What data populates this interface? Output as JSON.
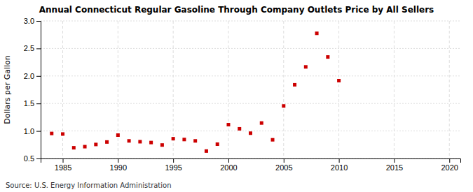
{
  "chart_data": {
    "type": "scatter",
    "title": "Annual Connecticut Regular Gasoline Through Company Outlets Price by All Sellers",
    "ylabel": "Dollars per Gallon",
    "annotations": [
      "Source: U.S. Energy Information Administration"
    ],
    "color": "#cc0000",
    "marker": "square",
    "grid": true,
    "xlim": [
      1983,
      2021
    ],
    "ylim": [
      0.5,
      3.0
    ],
    "xticks": [
      1985,
      1990,
      1995,
      2000,
      2005,
      2010,
      2015,
      2020
    ],
    "yticks": [
      0.5,
      {
        "value": 1.0,
        "label": "1.0"
      },
      1.5,
      {
        "value": 2.0,
        "label": "2.0"
      },
      2.5,
      {
        "value": 3.0,
        "label": "3.0"
      }
    ],
    "x": [
      1984,
      1985,
      1986,
      1987,
      1988,
      1989,
      1990,
      1991,
      1992,
      1993,
      1994,
      1995,
      1996,
      1997,
      1998,
      1999,
      2000,
      2001,
      2002,
      2003,
      2004,
      2005,
      2006,
      2007,
      2008,
      2009,
      2010
    ],
    "values": [
      0.955,
      0.945,
      0.695,
      0.715,
      0.755,
      0.8,
      0.925,
      0.82,
      0.805,
      0.79,
      0.745,
      0.86,
      0.845,
      0.82,
      0.635,
      0.76,
      1.115,
      1.04,
      0.96,
      1.145,
      0.84,
      1.455,
      1.84,
      2.165,
      2.775,
      2.345,
      1.915
    ]
  }
}
